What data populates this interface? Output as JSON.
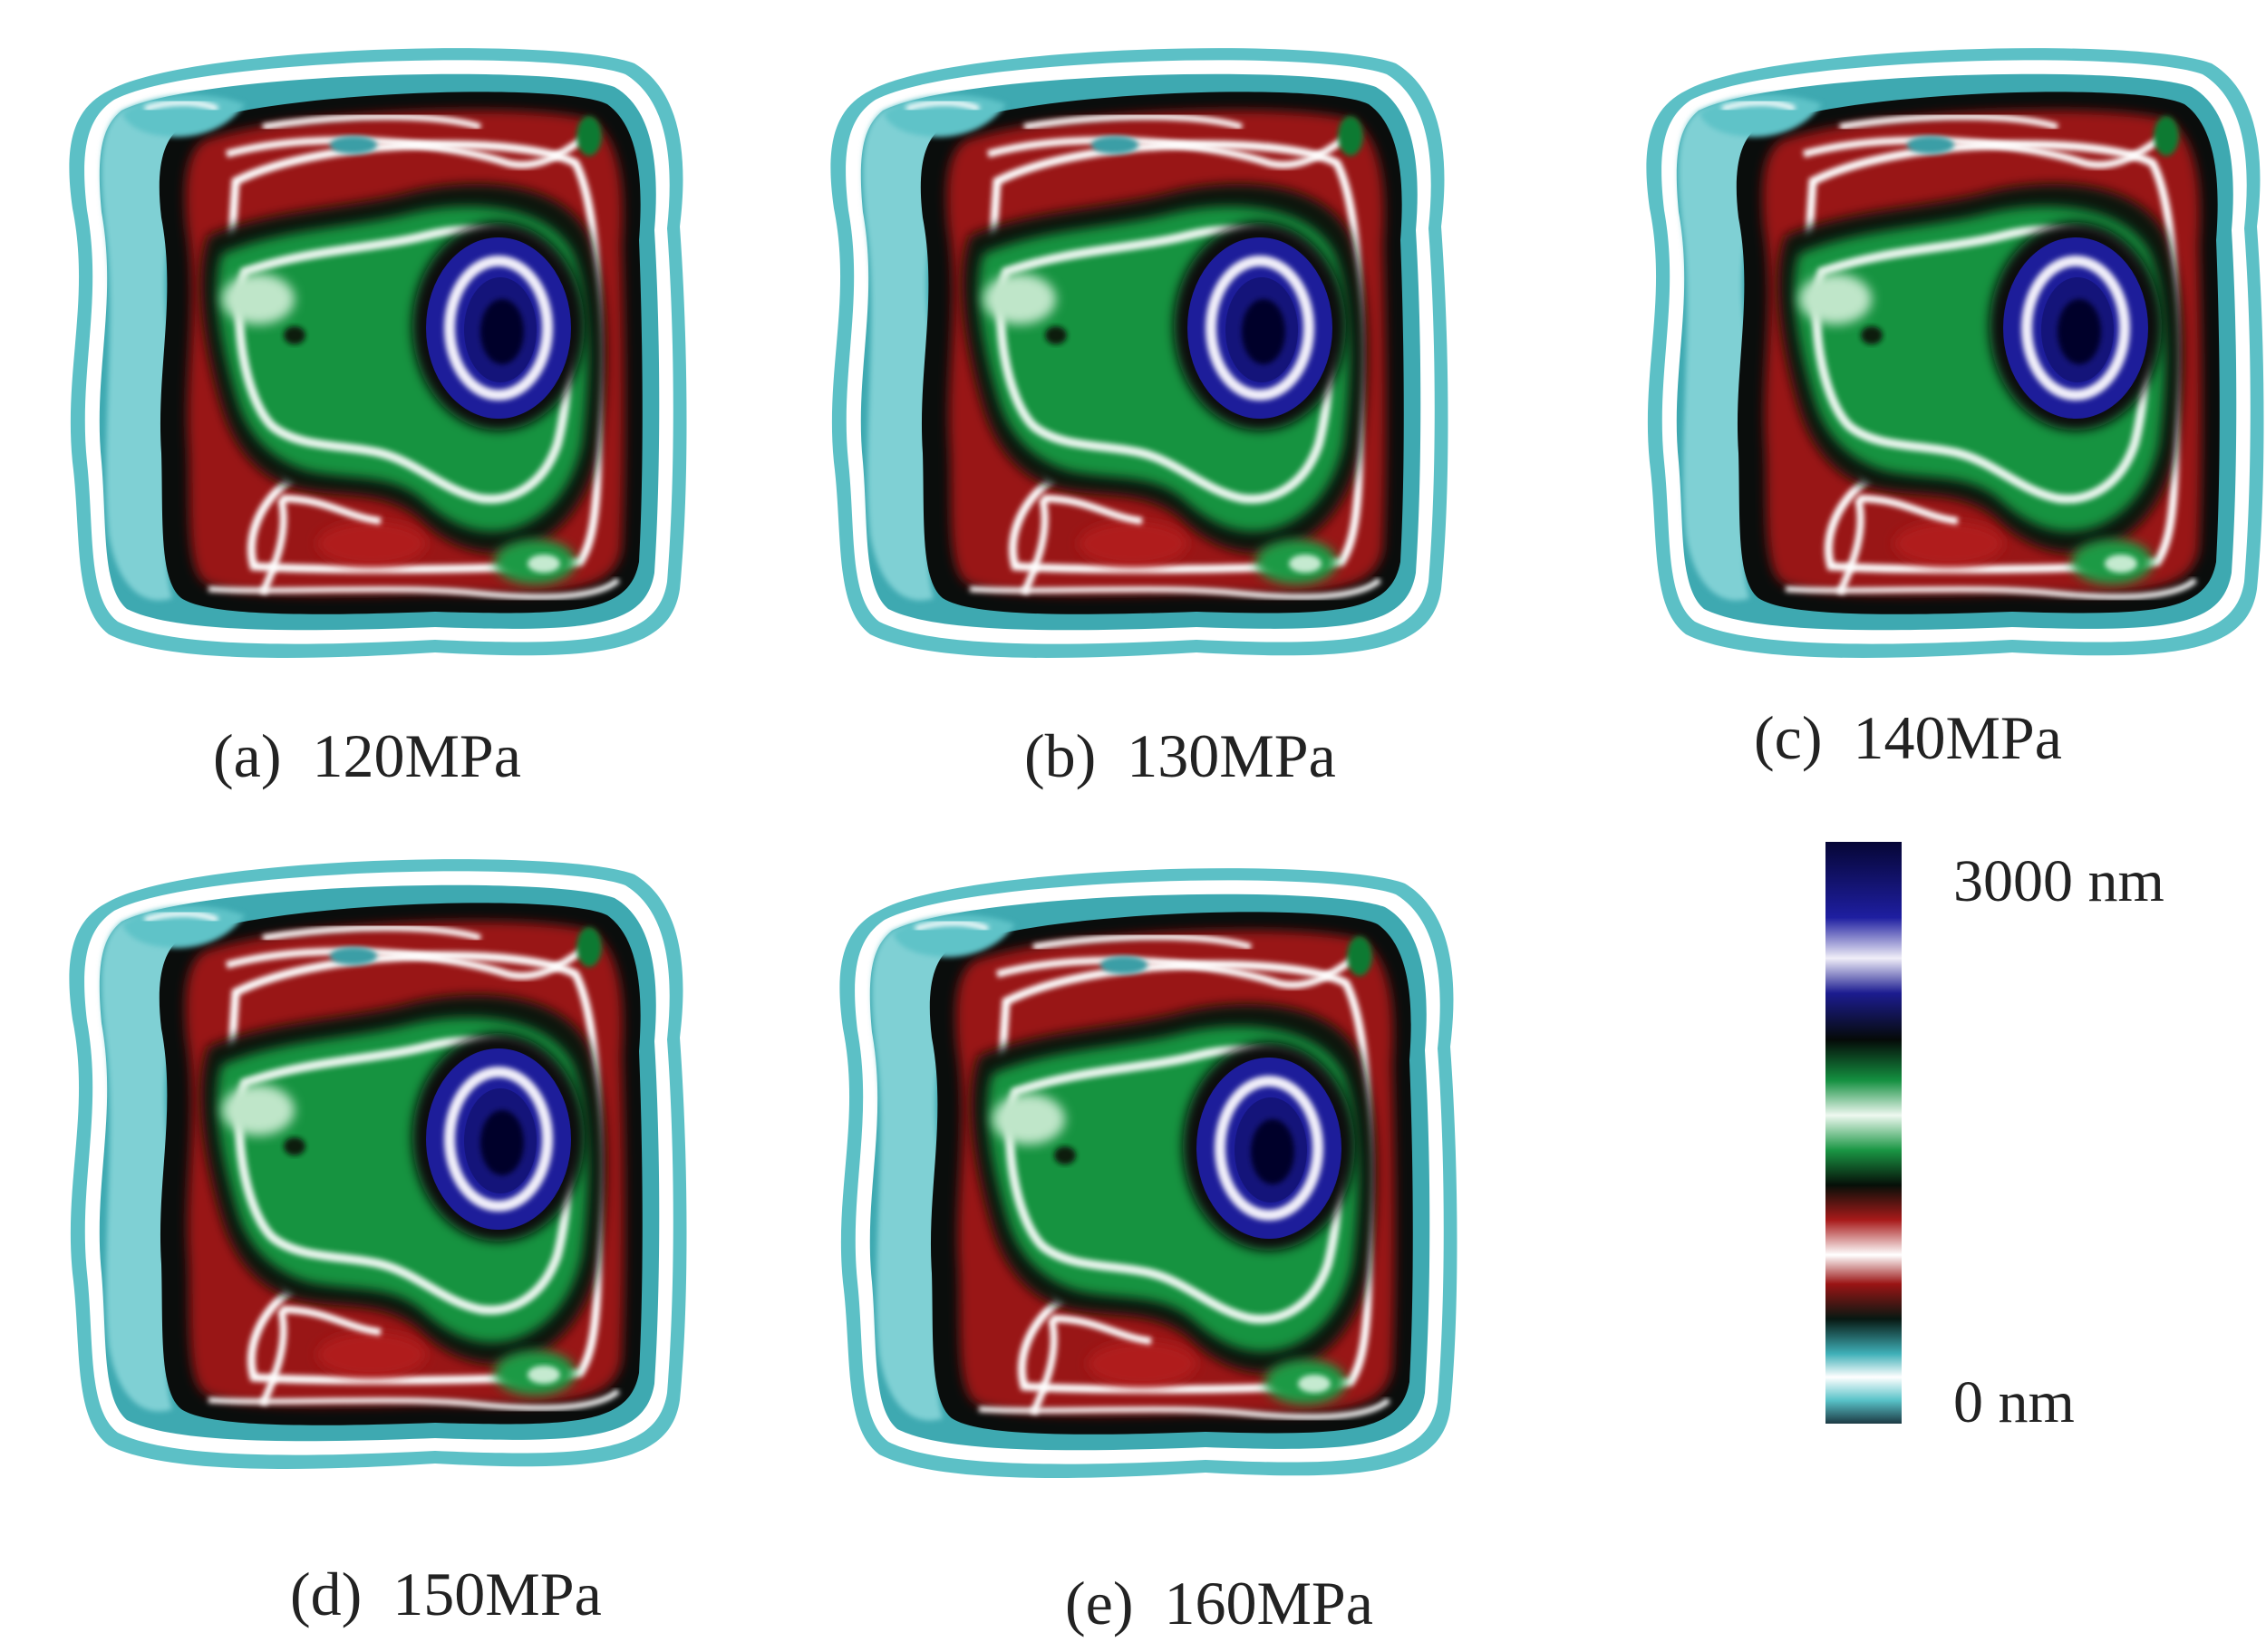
{
  "panels": [
    {
      "caption": "(a)  120MPa"
    },
    {
      "caption": "(b)  130MPa"
    },
    {
      "caption": "(c)  140MPa"
    },
    {
      "caption": "(d)  150MPa"
    },
    {
      "caption": "(e)  160MPa"
    }
  ],
  "colorbar": {
    "max_label": "3000 nm",
    "min_label": "0 nm",
    "colors": [
      "#1a2f3a",
      "#4fb8c0",
      "#ffffff",
      "#3aa7b0",
      "#0a1a14",
      "#8b1010",
      "#ffffff",
      "#a01818",
      "#0c2a10",
      "#189040",
      "#e8f5ec",
      "#12803a",
      "#0a1410",
      "#1a1a8c",
      "#f0eef8",
      "#1c1c9a",
      "#08083c"
    ]
  }
}
